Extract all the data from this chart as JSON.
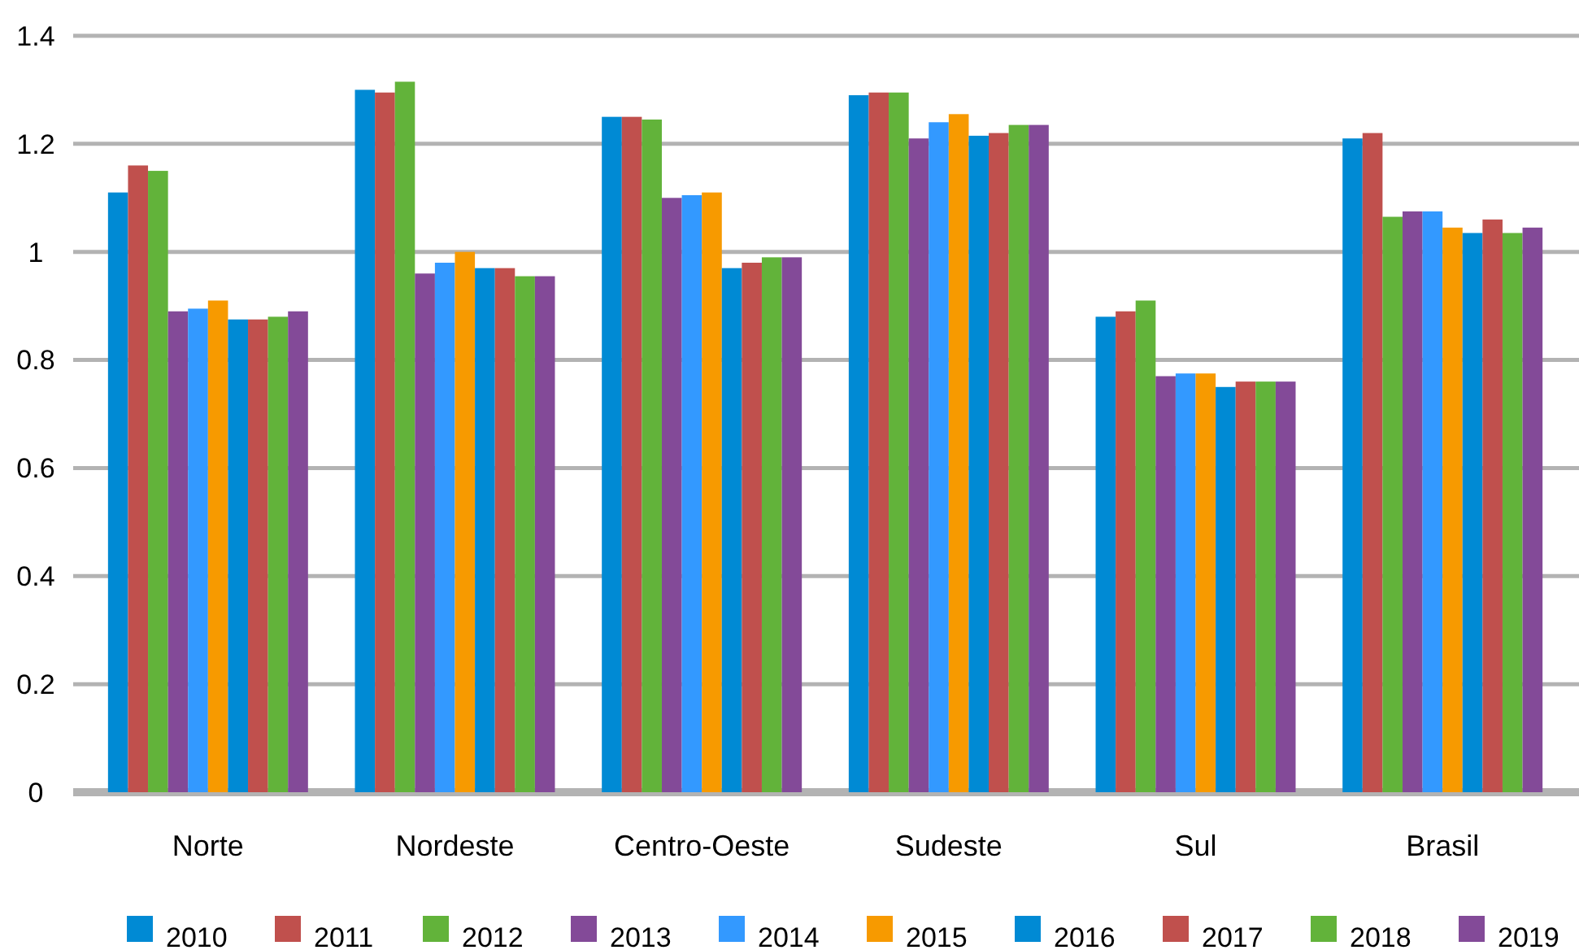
{
  "chart_data": {
    "type": "bar",
    "categories": [
      "Norte",
      "Nordeste",
      "Centro-Oeste",
      "Sudeste",
      "Sul",
      "Brasil"
    ],
    "series": [
      {
        "name": "2010",
        "color": "#008ad4",
        "values": [
          1.11,
          1.3,
          1.25,
          1.29,
          0.88,
          1.21
        ]
      },
      {
        "name": "2011",
        "color": "#c0504d",
        "values": [
          1.16,
          1.295,
          1.25,
          1.295,
          0.89,
          1.22
        ]
      },
      {
        "name": "2012",
        "color": "#62b33a",
        "values": [
          1.15,
          1.315,
          1.245,
          1.295,
          0.91,
          1.065
        ]
      },
      {
        "name": "2013",
        "color": "#834a98",
        "values": [
          0.89,
          0.96,
          1.1,
          1.21,
          0.77,
          1.075
        ]
      },
      {
        "name": "2014",
        "color": "#3399ff",
        "values": [
          0.895,
          0.98,
          1.105,
          1.24,
          0.775,
          1.075
        ]
      },
      {
        "name": "2015",
        "color": "#f79a00",
        "values": [
          0.91,
          1.0,
          1.11,
          1.255,
          0.775,
          1.045
        ]
      },
      {
        "name": "2016",
        "color": "#008ad4",
        "values": [
          0.875,
          0.97,
          0.97,
          1.215,
          0.75,
          1.035
        ]
      },
      {
        "name": "2017",
        "color": "#c0504d",
        "values": [
          0.875,
          0.97,
          0.98,
          1.22,
          0.76,
          1.06
        ]
      },
      {
        "name": "2018",
        "color": "#62b33a",
        "values": [
          0.88,
          0.955,
          0.99,
          1.235,
          0.76,
          1.035
        ]
      },
      {
        "name": "2019",
        "color": "#834a98",
        "values": [
          0.89,
          0.955,
          0.99,
          1.235,
          0.76,
          1.045
        ]
      }
    ],
    "ylim": [
      0,
      1.4
    ],
    "yticks": [
      0,
      0.2,
      0.4,
      0.6,
      0.8,
      1,
      1.2,
      1.4
    ],
    "grid": "y",
    "legend": "bottom"
  }
}
